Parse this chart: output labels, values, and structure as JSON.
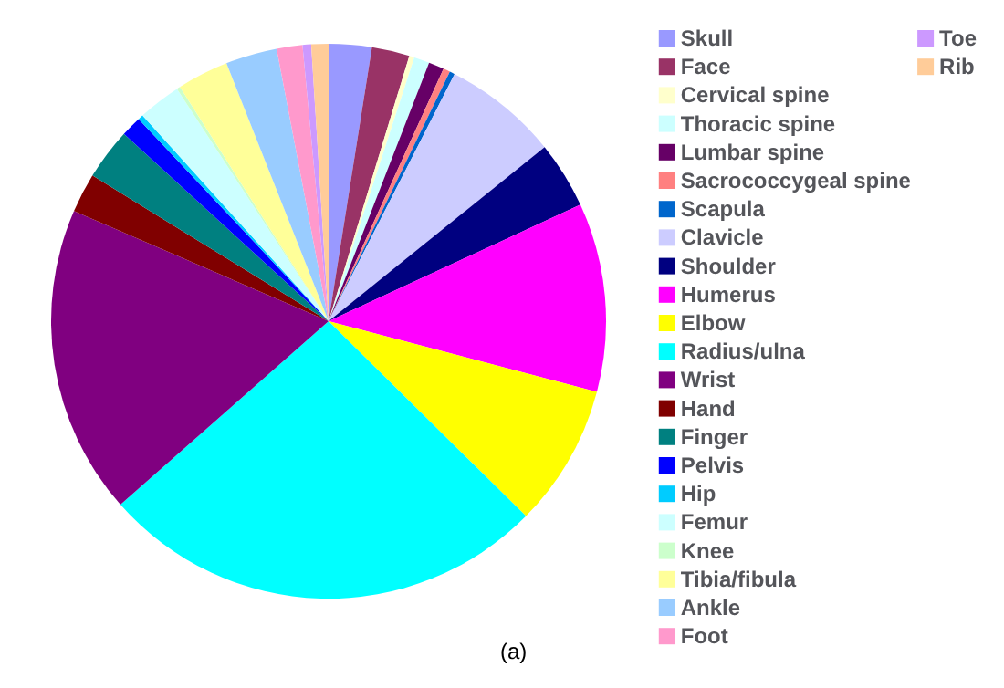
{
  "chart_data": {
    "type": "pie",
    "categories": [
      "Skull",
      "Face",
      "Cervical spine",
      "Thoracic spine",
      "Lumbar spine",
      "Sacrococcygeal spine",
      "Scapula",
      "Clavicle",
      "Shoulder",
      "Humerus",
      "Elbow",
      "Radius/ulna",
      "Wrist",
      "Hand",
      "Finger",
      "Pelvis",
      "Hip",
      "Femur",
      "Knee",
      "Tibia/fibula",
      "Ankle",
      "Foot",
      "Toe",
      "Rib"
    ],
    "values": [
      2.5,
      2.2,
      0.3,
      0.9,
      0.9,
      0.4,
      0.3,
      6.7,
      3.9,
      11,
      8.3,
      26.1,
      18,
      2.3,
      3,
      1.2,
      0.3,
      2.5,
      0.2,
      3,
      3,
      1.5,
      0.5,
      1
    ],
    "colors": [
      "#9999ff",
      "#993366",
      "#ffffcc",
      "#ccffff",
      "#660066",
      "#ff8080",
      "#0066cc",
      "#ccccff",
      "#000080",
      "#ff00ff",
      "#ffff00",
      "#00ffff",
      "#800080",
      "#800000",
      "#008080",
      "#0000ff",
      "#00ccff",
      "#ccffff",
      "#ccffcc",
      "#ffff99",
      "#99ccff",
      "#ff99cc",
      "#cc99ff",
      "#ffcc99"
    ],
    "legend": "right",
    "annotations": [
      "(a)"
    ]
  }
}
